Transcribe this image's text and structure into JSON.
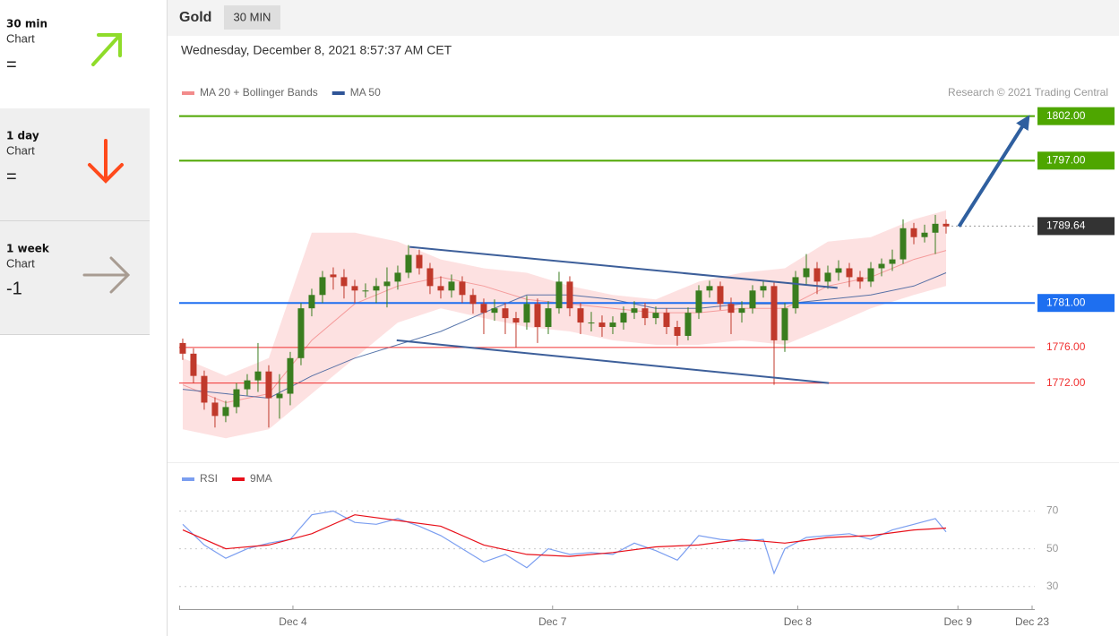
{
  "sidebar": [
    {
      "title": "30 min",
      "subtitle": "Chart",
      "signal": "="
    },
    {
      "title": "1 day",
      "subtitle": "Chart",
      "signal": "="
    },
    {
      "title": "1 week",
      "subtitle": "Chart",
      "signal": "-1"
    }
  ],
  "chart_data": [
    {
      "type": "candlestick",
      "title": "Gold",
      "timeframe": "30 MIN",
      "subtitle": "Wednesday, December 8, 2021 8:57:37 AM CET",
      "credit": "Research © 2021 Trading Central",
      "up_color": "#3a7d1f",
      "down_color": "#c0392b",
      "xlim": [
        -0.33,
        79.25
      ],
      "ylim": [
        1763.2,
        1807
      ],
      "candles": [
        [
          1776.5,
          1777.0,
          1774.6,
          1775.3
        ],
        [
          1775.3,
          1775.9,
          1772.0,
          1772.8
        ],
        [
          1772.8,
          1773.4,
          1769.0,
          1769.8
        ],
        [
          1769.8,
          1770.4,
          1767.0,
          1768.3
        ],
        [
          1768.3,
          1770.0,
          1767.6,
          1769.3
        ],
        [
          1769.3,
          1772.0,
          1768.6,
          1771.3
        ],
        [
          1771.3,
          1773.0,
          1770.6,
          1772.3
        ],
        [
          1772.3,
          1776.5,
          1771.0,
          1773.3
        ],
        [
          1773.3,
          1774.0,
          1767.0,
          1770.3
        ],
        [
          1770.3,
          1773.0,
          1768.0,
          1770.8
        ],
        [
          1770.8,
          1775.5,
          1769.5,
          1774.8
        ],
        [
          1774.8,
          1781.0,
          1774.0,
          1780.4
        ],
        [
          1780.4,
          1782.6,
          1779.5,
          1781.9
        ],
        [
          1781.9,
          1784.6,
          1781.0,
          1783.9
        ],
        [
          1784.2,
          1785.0,
          1782.5,
          1783.9
        ],
        [
          1783.9,
          1784.8,
          1781.5,
          1782.9
        ],
        [
          1782.9,
          1783.6,
          1781.0,
          1782.4
        ],
        [
          1782.4,
          1783.2,
          1781.6,
          1782.4
        ],
        [
          1782.4,
          1783.8,
          1781.0,
          1782.9
        ],
        [
          1782.9,
          1785.0,
          1780.5,
          1783.4
        ],
        [
          1783.4,
          1785.2,
          1782.5,
          1784.4
        ],
        [
          1784.4,
          1787.5,
          1783.8,
          1786.4
        ],
        [
          1786.4,
          1787.0,
          1784.2,
          1784.9
        ],
        [
          1784.9,
          1785.5,
          1782.0,
          1782.9
        ],
        [
          1782.9,
          1784.0,
          1781.5,
          1782.4
        ],
        [
          1782.4,
          1784.2,
          1781.6,
          1783.4
        ],
        [
          1783.4,
          1784.0,
          1781.0,
          1781.9
        ],
        [
          1781.9,
          1782.6,
          1779.8,
          1780.9
        ],
        [
          1780.9,
          1781.5,
          1777.5,
          1779.9
        ],
        [
          1779.9,
          1781.4,
          1779.0,
          1780.4
        ],
        [
          1780.4,
          1781.0,
          1777.5,
          1779.3
        ],
        [
          1779.3,
          1780.0,
          1776.0,
          1778.8
        ],
        [
          1778.8,
          1781.8,
          1778.0,
          1780.9
        ],
        [
          1780.9,
          1781.5,
          1776.5,
          1778.3
        ],
        [
          1778.3,
          1781.2,
          1777.5,
          1780.4
        ],
        [
          1780.4,
          1784.5,
          1779.8,
          1783.4
        ],
        [
          1783.4,
          1784.0,
          1779.5,
          1780.4
        ],
        [
          1780.4,
          1781.0,
          1777.5,
          1778.8
        ],
        [
          1778.8,
          1780.0,
          1777.8,
          1778.8
        ],
        [
          1778.8,
          1779.6,
          1777.2,
          1778.3
        ],
        [
          1778.3,
          1779.5,
          1777.5,
          1778.8
        ],
        [
          1778.8,
          1780.6,
          1778.0,
          1779.9
        ],
        [
          1779.9,
          1781.2,
          1779.2,
          1780.4
        ],
        [
          1780.4,
          1781.0,
          1778.5,
          1779.3
        ],
        [
          1779.3,
          1780.6,
          1778.6,
          1779.9
        ],
        [
          1779.9,
          1780.4,
          1777.5,
          1778.3
        ],
        [
          1778.3,
          1779.0,
          1776.2,
          1777.3
        ],
        [
          1777.3,
          1780.5,
          1776.8,
          1779.9
        ],
        [
          1779.9,
          1783.0,
          1779.2,
          1782.4
        ],
        [
          1782.4,
          1783.5,
          1781.6,
          1782.9
        ],
        [
          1782.9,
          1783.4,
          1780.2,
          1780.9
        ],
        [
          1780.9,
          1781.6,
          1777.5,
          1779.9
        ],
        [
          1779.9,
          1781.2,
          1778.8,
          1780.4
        ],
        [
          1780.4,
          1783.0,
          1779.8,
          1782.4
        ],
        [
          1782.4,
          1783.6,
          1781.6,
          1782.9
        ],
        [
          1782.9,
          1783.4,
          1771.8,
          1776.8
        ],
        [
          1776.8,
          1781.0,
          1775.5,
          1780.4
        ],
        [
          1780.4,
          1784.6,
          1779.8,
          1783.9
        ],
        [
          1783.9,
          1786.5,
          1783.0,
          1784.9
        ],
        [
          1784.9,
          1785.6,
          1782.0,
          1783.4
        ],
        [
          1783.4,
          1785.2,
          1782.6,
          1784.4
        ],
        [
          1784.4,
          1785.8,
          1783.5,
          1784.9
        ],
        [
          1784.9,
          1785.5,
          1782.8,
          1783.9
        ],
        [
          1783.9,
          1784.6,
          1782.6,
          1783.4
        ],
        [
          1783.4,
          1785.6,
          1782.8,
          1784.9
        ],
        [
          1784.9,
          1786.0,
          1784.0,
          1785.4
        ],
        [
          1785.4,
          1787.0,
          1784.6,
          1785.9
        ],
        [
          1785.9,
          1790.4,
          1785.4,
          1789.4
        ],
        [
          1789.4,
          1790.0,
          1787.6,
          1788.4
        ],
        [
          1788.4,
          1789.8,
          1787.8,
          1788.9
        ],
        [
          1788.9,
          1790.9,
          1786.5,
          1789.9
        ],
        [
          1789.9,
          1790.4,
          1788.8,
          1789.6
        ]
      ],
      "series": [
        {
          "name": "MA 20 + Bollinger Bands",
          "color": "#f28b8b",
          "band_color": "#fde1e1",
          "x": [
            0,
            4,
            8,
            12,
            16,
            20,
            24,
            28,
            32,
            36,
            40,
            44,
            48,
            52,
            56,
            60,
            64,
            68,
            71
          ],
          "values": [
            1771.8,
            1769.8,
            1770.8,
            1776.8,
            1780.9,
            1782.9,
            1783.9,
            1782.9,
            1781.4,
            1780.9,
            1780.4,
            1779.9,
            1779.9,
            1780.4,
            1780.4,
            1782.9,
            1783.9,
            1785.9,
            1786.9
          ],
          "band_upper": [
            1774.8,
            1772.8,
            1774.8,
            1788.9,
            1788.9,
            1787.9,
            1785.9,
            1784.9,
            1784.4,
            1782.9,
            1781.9,
            1781.4,
            1783.4,
            1784.4,
            1784.9,
            1787.9,
            1788.4,
            1790.4,
            1791.4
          ],
          "band_lower": [
            1766.8,
            1765.8,
            1766.8,
            1770.8,
            1774.8,
            1778.8,
            1780.4,
            1779.3,
            1778.3,
            1777.8,
            1776.8,
            1776.3,
            1776.3,
            1776.8,
            1776.3,
            1778.3,
            1780.4,
            1781.9,
            1782.9
          ]
        },
        {
          "name": "MA 50",
          "color": "#2f5597",
          "x": [
            0,
            4,
            8,
            12,
            16,
            20,
            24,
            28,
            32,
            36,
            40,
            44,
            48,
            52,
            56,
            60,
            64,
            68,
            71
          ],
          "values": [
            1771.3,
            1770.8,
            1770.3,
            1772.8,
            1774.8,
            1776.3,
            1777.8,
            1779.9,
            1781.9,
            1781.9,
            1781.4,
            1780.4,
            1780.4,
            1780.9,
            1780.9,
            1781.4,
            1781.9,
            1782.9,
            1784.4
          ]
        }
      ],
      "levels": [
        {
          "value": 1802,
          "label": "1802.00",
          "color": "#4ea600",
          "boxed": true,
          "line": "solid"
        },
        {
          "value": 1797,
          "label": "1797.00",
          "color": "#4ea600",
          "boxed": true,
          "line": "solid"
        },
        {
          "value": 1789.64,
          "label": "1789.64",
          "color": "#333333",
          "boxed": true,
          "line": "dotted"
        },
        {
          "value": 1781,
          "label": "1781.00",
          "color": "#1e6ff0",
          "boxed": true,
          "line": "solid"
        },
        {
          "value": 1776,
          "label": "1776.00",
          "color": "#f03030",
          "boxed": false,
          "line": "solid"
        },
        {
          "value": 1772,
          "label": "1772.00",
          "color": "#f03030",
          "boxed": false,
          "line": "solid"
        }
      ],
      "trendlines": [
        {
          "x": [
            21.1,
            60.9
          ],
          "values": [
            1787.3,
            1782.7
          ]
        },
        {
          "x": [
            19.9,
            60.1
          ],
          "values": [
            1776.8,
            1772.0
          ]
        }
      ],
      "target_arrow": {
        "x": [
          72.2,
          78.5
        ],
        "values": [
          1789.6,
          1801.6
        ]
      }
    },
    {
      "type": "line",
      "xlim": [
        -0.33,
        79.25
      ],
      "ylim": [
        18,
        94
      ],
      "yticks": [
        30,
        50,
        70
      ],
      "grid": true,
      "xticks": [
        {
          "value": 10.25,
          "label": "Dec 4"
        },
        {
          "value": 34.4,
          "label": "Dec 7"
        },
        {
          "value": 57.2,
          "label": "Dec 8"
        },
        {
          "value": 72.1,
          "label": "Dec 9"
        },
        {
          "value": 79,
          "label": "Dec 23"
        }
      ],
      "series": [
        {
          "name": "RSI",
          "color": "#7b9ef0",
          "x": [
            0,
            2,
            4,
            6,
            8,
            10,
            12,
            14,
            16,
            18,
            20,
            22,
            24,
            26,
            28,
            30,
            32,
            34,
            36,
            38,
            40,
            42,
            44,
            46,
            48,
            50,
            52,
            54,
            55,
            56,
            58,
            60,
            62,
            64,
            66,
            68,
            70,
            71
          ],
          "values": [
            63,
            52,
            45,
            50,
            53,
            55,
            68,
            70,
            64,
            63,
            66,
            62,
            57,
            50,
            43,
            47,
            40,
            50,
            47,
            48,
            47,
            53,
            49,
            44,
            57,
            55,
            54,
            55,
            37,
            50,
            56,
            57,
            58,
            55,
            60,
            63,
            66,
            59
          ]
        },
        {
          "name": "9MA",
          "color": "#e8101a",
          "x": [
            0,
            4,
            8,
            12,
            16,
            20,
            24,
            28,
            32,
            36,
            40,
            44,
            48,
            52,
            56,
            60,
            64,
            68,
            71
          ],
          "values": [
            60,
            50,
            52,
            58,
            68,
            65,
            62,
            52,
            47,
            46,
            48,
            51,
            52,
            55,
            53,
            56,
            57,
            60,
            61
          ]
        }
      ]
    }
  ]
}
